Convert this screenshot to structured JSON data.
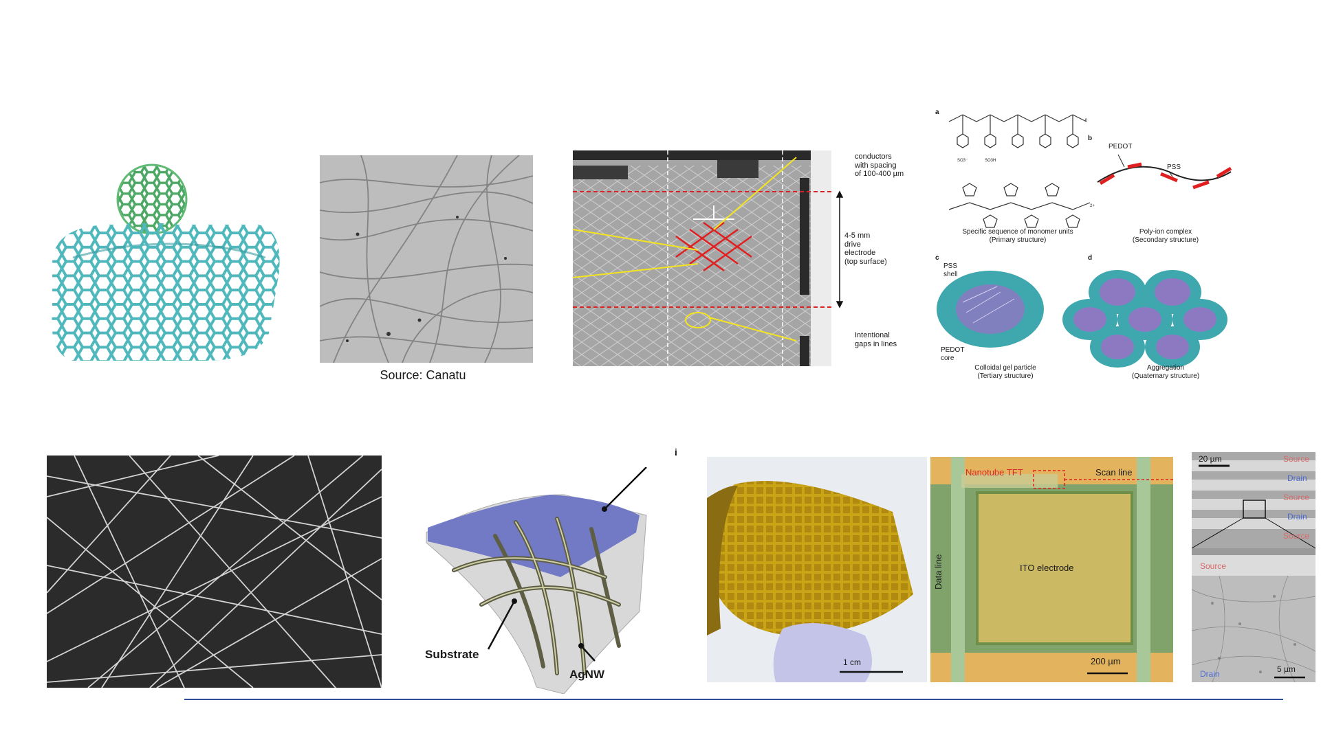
{
  "canatu": {
    "source": "Source: Canatu"
  },
  "mesh": {
    "conductors": [
      "conductors",
      "with spacing",
      "of 100-400 µm"
    ],
    "drive": [
      "4-5 mm",
      "drive",
      "electrode",
      "(top surface)"
    ],
    "gaps": [
      "Intentional",
      "gaps in lines"
    ]
  },
  "pedot": {
    "panel_a": "a",
    "panel_b": "b",
    "panel_c": "c",
    "panel_d": "d",
    "pedot_label": "PEDOT",
    "pss_label": "PSS",
    "a_caption": [
      "Specific sequence of monomer units",
      "(Primary structure)"
    ],
    "b_caption": [
      "Poly-ion complex",
      "(Secondary structure)"
    ],
    "c_shell": [
      "PSS",
      "shell"
    ],
    "c_core": [
      "PEDOT",
      "core"
    ],
    "c_caption": [
      "Colloidal gel particle",
      "(Tertiary structure)"
    ],
    "d_caption": [
      "Aggregation",
      "(Quaternary structure)"
    ],
    "so3_minus": "SO3⁻",
    "so3h": "SO3H",
    "n": "n",
    "two_plus": "2+"
  },
  "agnw": {
    "substrate": "Substrate",
    "agnw": "AgNW",
    "stray_mark": "i"
  },
  "tft": {
    "scale_1cm": "1 cm",
    "nanotube_tft": "Nanotube TFT",
    "scan_line": "Scan line",
    "data_line": "Data line",
    "ito": "ITO electrode",
    "scale_200": "200 µm",
    "scale_20": "20 µm",
    "source": "Source",
    "drain": "Drain",
    "scale_5": "5 µm"
  },
  "colors": {
    "footer_line": "#2e4e9c",
    "cnt": "#5fc4c8",
    "buckyball": "#5fba73",
    "wire_red": "#e02020",
    "annot": "#f5e51c"
  }
}
